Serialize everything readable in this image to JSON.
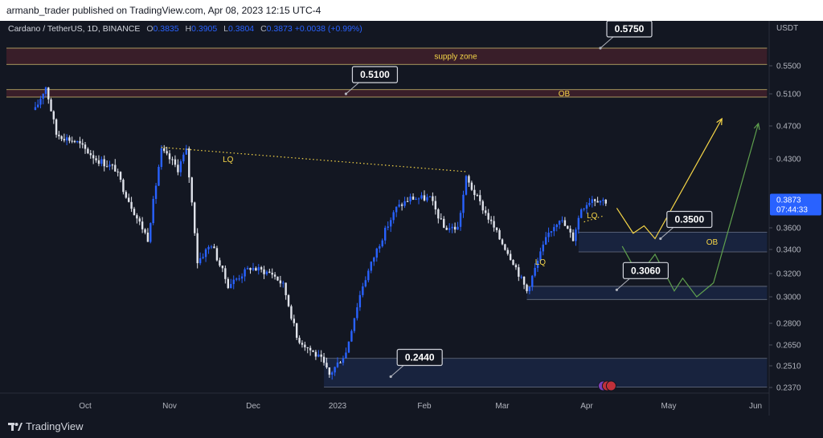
{
  "header": {
    "published": "armanb_trader published on TradingView.com, Apr 08, 2023 12:15 UTC-4"
  },
  "symbol": {
    "name": "Cardano / TetherUS, 1D, BINANCE",
    "o_label": "O",
    "o_value": "0.3835",
    "h_label": "H",
    "h_value": "0.3905",
    "l_label": "L",
    "l_value": "0.3804",
    "c_label": "C",
    "c_value": "0.3873",
    "change": "+0.0038 (+0.99%)"
  },
  "footer": {
    "brand": "TradingView"
  },
  "chart_data": {
    "type": "candlestick",
    "currency_label": "USDT",
    "y_ticks": [
      "0.5500",
      "0.5100",
      "0.4700",
      "0.4300",
      "0.3600",
      "0.3400",
      "0.3200",
      "0.3000",
      "0.2800",
      "0.2650",
      "0.2510",
      "0.2370"
    ],
    "x_ticks": [
      "Oct",
      "Nov",
      "Dec",
      "2023",
      "Feb",
      "Mar",
      "Apr",
      "May",
      "Jun"
    ],
    "last_price": "0.3873",
    "countdown": "07:44:33",
    "price_path": [
      {
        "date": "2022-09-12",
        "close": 0.49
      },
      {
        "date": "2022-09-16",
        "close": 0.52
      },
      {
        "date": "2022-09-20",
        "close": 0.46
      },
      {
        "date": "2022-09-28",
        "close": 0.45
      },
      {
        "date": "2022-10-05",
        "close": 0.43
      },
      {
        "date": "2022-10-12",
        "close": 0.42
      },
      {
        "date": "2022-10-15",
        "close": 0.4
      },
      {
        "date": "2022-10-20",
        "close": 0.37
      },
      {
        "date": "2022-10-24",
        "close": 0.35
      },
      {
        "date": "2022-10-29",
        "close": 0.44
      },
      {
        "date": "2022-11-04",
        "close": 0.42
      },
      {
        "date": "2022-11-07",
        "close": 0.44
      },
      {
        "date": "2022-11-11",
        "close": 0.33
      },
      {
        "date": "2022-11-16",
        "close": 0.345
      },
      {
        "date": "2022-11-22",
        "close": 0.31
      },
      {
        "date": "2022-11-30",
        "close": 0.325
      },
      {
        "date": "2022-12-08",
        "close": 0.32
      },
      {
        "date": "2022-12-12",
        "close": 0.31
      },
      {
        "date": "2022-12-17",
        "close": 0.27
      },
      {
        "date": "2022-12-26",
        "close": 0.255
      },
      {
        "date": "2022-12-29",
        "close": 0.245
      },
      {
        "date": "2023-01-04",
        "close": 0.26
      },
      {
        "date": "2023-01-10",
        "close": 0.31
      },
      {
        "date": "2023-01-15",
        "close": 0.34
      },
      {
        "date": "2023-01-22",
        "close": 0.38
      },
      {
        "date": "2023-01-27",
        "close": 0.39
      },
      {
        "date": "2023-02-03",
        "close": 0.39
      },
      {
        "date": "2023-02-08",
        "close": 0.36
      },
      {
        "date": "2023-02-13",
        "close": 0.36
      },
      {
        "date": "2023-02-16",
        "close": 0.41
      },
      {
        "date": "2023-02-22",
        "close": 0.38
      },
      {
        "date": "2023-02-28",
        "close": 0.35
      },
      {
        "date": "2023-03-05",
        "close": 0.33
      },
      {
        "date": "2023-03-10",
        "close": 0.305
      },
      {
        "date": "2023-03-14",
        "close": 0.33
      },
      {
        "date": "2023-03-18",
        "close": 0.355
      },
      {
        "date": "2023-03-22",
        "close": 0.37
      },
      {
        "date": "2023-03-27",
        "close": 0.35
      },
      {
        "date": "2023-03-30",
        "close": 0.38
      },
      {
        "date": "2023-04-03",
        "close": 0.39
      },
      {
        "date": "2023-04-08",
        "close": 0.3873
      }
    ],
    "zones": [
      {
        "label": "supply zone",
        "top": 0.575,
        "bottom": 0.552,
        "start": "2022-09-01",
        "end": "2023-06-05",
        "color": "#5a2430"
      },
      {
        "label": "OB",
        "top": 0.516,
        "bottom": 0.506,
        "start": "2022-09-01",
        "end": "2023-06-05",
        "color": "#5a2430"
      },
      {
        "label": "OB",
        "top": 0.356,
        "bottom": 0.338,
        "start": "2023-03-29",
        "end": "2023-06-05",
        "color": "#1e2e55"
      },
      {
        "label": "",
        "top": 0.309,
        "bottom": 0.298,
        "start": "2023-03-10",
        "end": "2023-06-05",
        "color": "#1e2e55"
      },
      {
        "label": "",
        "top": 0.256,
        "bottom": 0.2372,
        "start": "2022-12-27",
        "end": "2023-06-05",
        "color": "#1e2e55"
      }
    ],
    "callouts": [
      {
        "text": "0.5750",
        "date": "2023-04-06",
        "price": 0.575
      },
      {
        "text": "0.5100",
        "date": "2023-01-04",
        "price": 0.51
      },
      {
        "text": "0.3500",
        "date": "2023-04-28",
        "price": 0.35
      },
      {
        "text": "0.3060",
        "date": "2023-04-12",
        "price": 0.306
      },
      {
        "text": "0.2440",
        "date": "2023-01-20",
        "price": 0.244
      }
    ],
    "liquidity_labels": [
      {
        "text": "LQ",
        "date": "2022-11-22",
        "price": 0.43
      },
      {
        "text": "LQ",
        "date": "2023-03-15",
        "price": 0.33
      },
      {
        "text": "LQ",
        "date": "2023-04-03",
        "price": 0.373
      }
    ],
    "projections": [
      {
        "name": "yellow",
        "color": "#f5d547",
        "points": [
          {
            "date": "2023-04-12",
            "price": 0.38
          },
          {
            "date": "2023-04-18",
            "price": 0.355
          },
          {
            "date": "2023-04-22",
            "price": 0.362
          },
          {
            "date": "2023-04-26",
            "price": 0.35
          },
          {
            "date": "2023-05-20",
            "price": 0.479
          }
        ]
      },
      {
        "name": "green",
        "color": "#5fa04e",
        "points": [
          {
            "date": "2023-04-14",
            "price": 0.343
          },
          {
            "date": "2023-04-20",
            "price": 0.318
          },
          {
            "date": "2023-04-26",
            "price": 0.336
          },
          {
            "date": "2023-05-03",
            "price": 0.305
          },
          {
            "date": "2023-05-06",
            "price": 0.316
          },
          {
            "date": "2023-05-11",
            "price": 0.3
          },
          {
            "date": "2023-05-17",
            "price": 0.312
          },
          {
            "date": "2023-06-02",
            "price": 0.473
          }
        ]
      }
    ]
  }
}
